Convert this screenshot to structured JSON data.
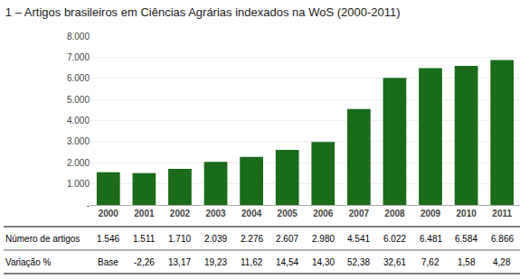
{
  "chart_data": {
    "type": "bar",
    "title": "1 – Artigos brasileiros em Ciências Agrárias indexados na WoS (2000-2011)",
    "categories": [
      "2000",
      "2001",
      "2002",
      "2003",
      "2004",
      "2005",
      "2006",
      "2007",
      "2008",
      "2009",
      "2010",
      "2011"
    ],
    "values": [
      1546,
      1511,
      1710,
      2039,
      2276,
      2607,
      2980,
      4541,
      6022,
      6481,
      6584,
      6866
    ],
    "color": "#1a6b1a",
    "ylim": [
      0,
      8000
    ],
    "yticks": [
      {
        "value": 0,
        "label": "-"
      },
      {
        "value": 1000,
        "label": "1.000"
      },
      {
        "value": 2000,
        "label": "2.000"
      },
      {
        "value": 3000,
        "label": "3.000"
      },
      {
        "value": 4000,
        "label": "4.000"
      },
      {
        "value": 5000,
        "label": "5.000"
      },
      {
        "value": 6000,
        "label": "6.000"
      },
      {
        "value": 7000,
        "label": "7.000"
      },
      {
        "value": 8000,
        "label": "8.000"
      }
    ],
    "grid": true,
    "table": [
      {
        "label": "Número de artigos",
        "values": [
          "1.546",
          "1.511",
          "1.710",
          "2.039",
          "2.276",
          "2.607",
          "2.980",
          "4.541",
          "6.022",
          "6.481",
          "6.584",
          "6.866"
        ]
      },
      {
        "label": "Variação %",
        "values": [
          "Base",
          "-2,26",
          "13,17",
          "19,23",
          "11,62",
          "14,54",
          "14,30",
          "52,38",
          "32,61",
          "7,62",
          "1,58",
          "4,28"
        ]
      }
    ]
  }
}
